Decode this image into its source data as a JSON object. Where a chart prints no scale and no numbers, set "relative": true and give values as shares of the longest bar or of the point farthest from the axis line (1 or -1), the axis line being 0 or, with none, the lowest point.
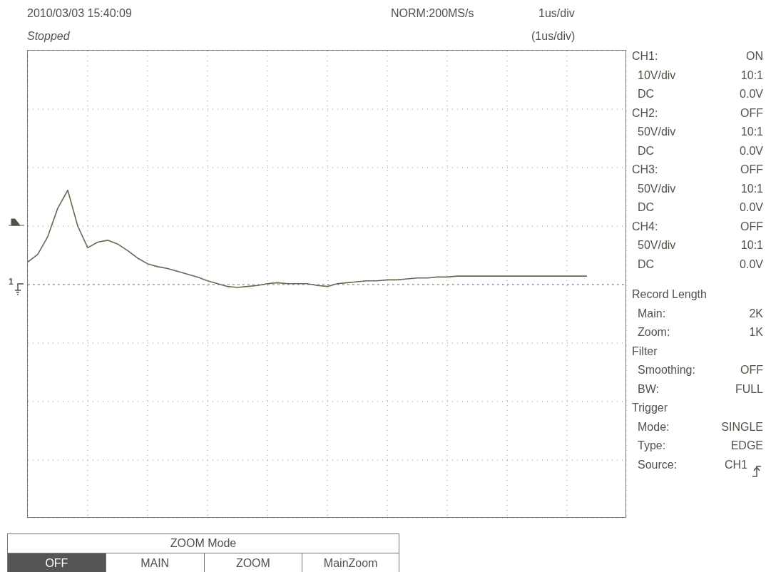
{
  "chart_data": {
    "type": "line",
    "relative": true,
    "grid": true,
    "title": "2010/03/03 15:40:09",
    "categories": [
      null,
      null,
      null,
      null,
      null,
      null,
      null,
      null,
      null,
      null,
      null,
      null,
      null,
      null,
      null,
      null,
      null,
      null,
      null,
      null,
      null,
      null,
      null,
      null,
      null,
      null,
      null,
      null,
      null,
      null,
      null,
      null,
      null,
      null,
      null,
      null,
      null,
      null,
      null,
      null,
      null,
      null,
      null,
      null,
      null,
      null,
      null,
      null,
      null,
      null,
      null,
      null,
      null,
      null,
      null,
      null,
      null,
      null,
      null,
      null,
      null
    ],
    "series": [
      {
        "color": "#6b6650",
        "values": [
          0.24,
          0.32,
          0.51,
          0.81,
          1,
          0.62,
          0.39,
          0.45,
          0.47,
          0.43,
          0.36,
          0.28,
          0.22,
          0.19,
          0.17,
          0.14,
          0.11,
          0.08,
          0.04,
          0.01,
          -0.02,
          -0.03,
          -0.02,
          -0.01,
          0.01,
          0.02,
          0.01,
          0.01,
          0.01,
          -0.01,
          -0.02,
          0.01,
          0.02,
          0.03,
          0.04,
          0.04,
          0.05,
          0.05,
          0.06,
          0.07,
          0.07,
          0.08,
          0.08,
          0.09,
          0.09,
          0.09,
          0.09,
          0.09,
          0.09,
          0.09,
          0.09,
          0.09,
          0.09,
          0.09,
          0.09,
          0.09,
          0.09,
          null,
          null,
          null,
          null
        ]
      }
    ],
    "ref_lines": [
      {
        "axis": "y",
        "value": 0,
        "line_style": "dashed",
        "color": "#777777"
      }
    ],
    "annotations": [
      "Stopped",
      "NORM:200MS/s",
      "1us/div",
      "(1us/div)",
      "CH1:",
      "ON",
      "10V/div",
      "10:1",
      "DC",
      "0.0V",
      "CH2:",
      "OFF",
      "50V/div",
      "10:1",
      "DC",
      "0.0V",
      "CH3:",
      "OFF",
      "50V/div",
      "10:1",
      "DC",
      "0.0V",
      "CH4:",
      "OFF",
      "50V/div",
      "10:1",
      "DC",
      "0.0V",
      "Record Length",
      "Main:",
      "2K",
      "Zoom:",
      "1K",
      "Filter",
      "Smoothing:",
      "OFF",
      "BW:",
      "FULL",
      "Trigger",
      "Mode:",
      "SINGLE",
      "Type:",
      "EDGE",
      "Source:",
      "CH1",
      "ZOOM Mode",
      "OFF",
      "MAIN",
      "ZOOM",
      "MainZoom",
      "1"
    ]
  }
}
